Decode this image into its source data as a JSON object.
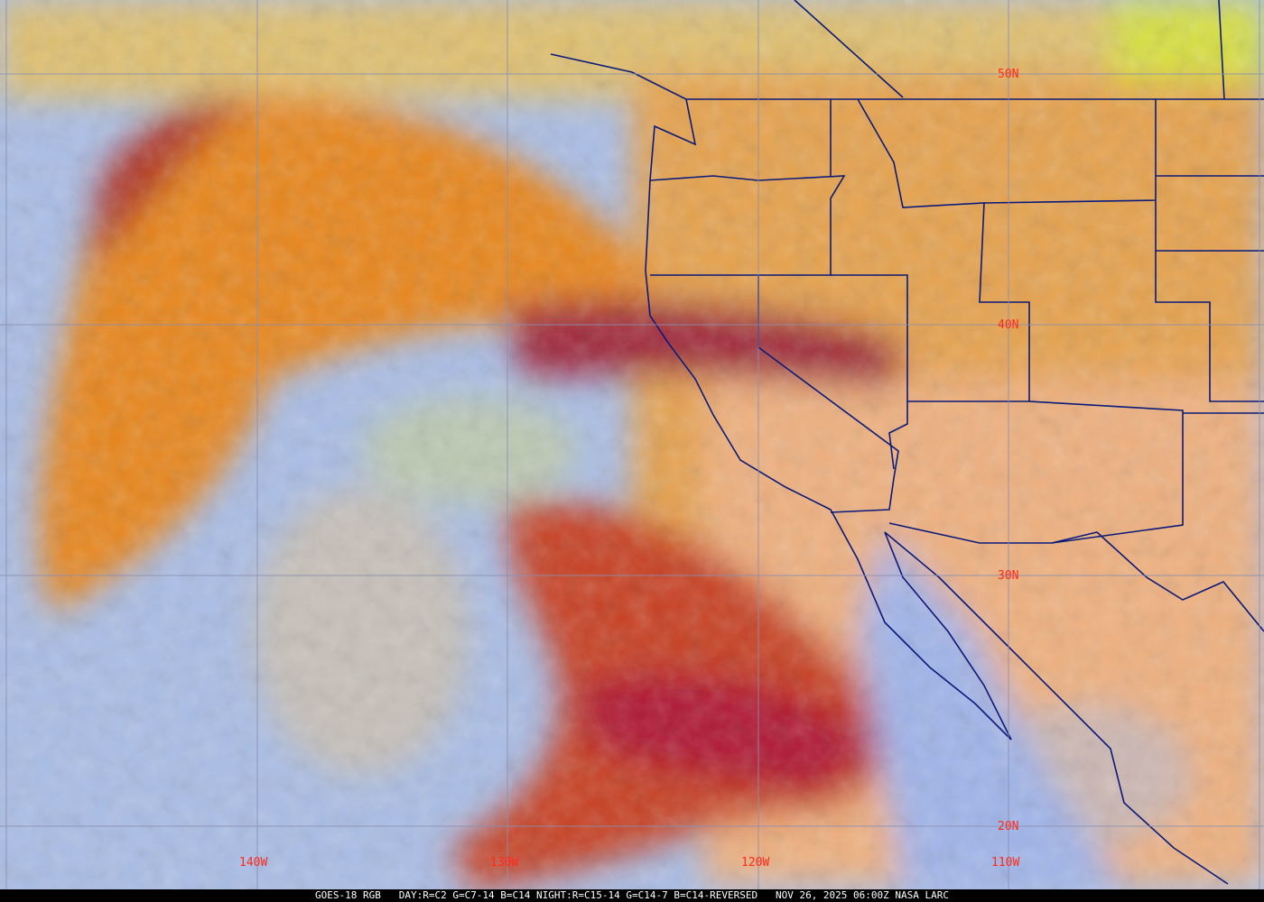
{
  "image": {
    "type": "satellite RGB composite",
    "colors": {
      "grid": "#8a8fb0",
      "labels": "#ff2a1a",
      "borders": "#0a1a7a",
      "ocean": "#9fb8e6",
      "land": "#e8a862",
      "cloud_high": "#e07020",
      "cloud_deep": "#a01830"
    }
  },
  "grid_labels": {
    "lat": [
      "50N",
      "40N",
      "30N",
      "20N"
    ],
    "lon": [
      "140W",
      "130W",
      "120W",
      "110W"
    ]
  },
  "caption": {
    "satellite": "GOES-18 RGB",
    "product": "DAY:R=C2 G=C7-14 B=C14 NIGHT:R=C15-14 G=C14-7 B=C14-REVERSED",
    "datetime": "NOV 26, 2025 06:00Z NASA LARC"
  }
}
